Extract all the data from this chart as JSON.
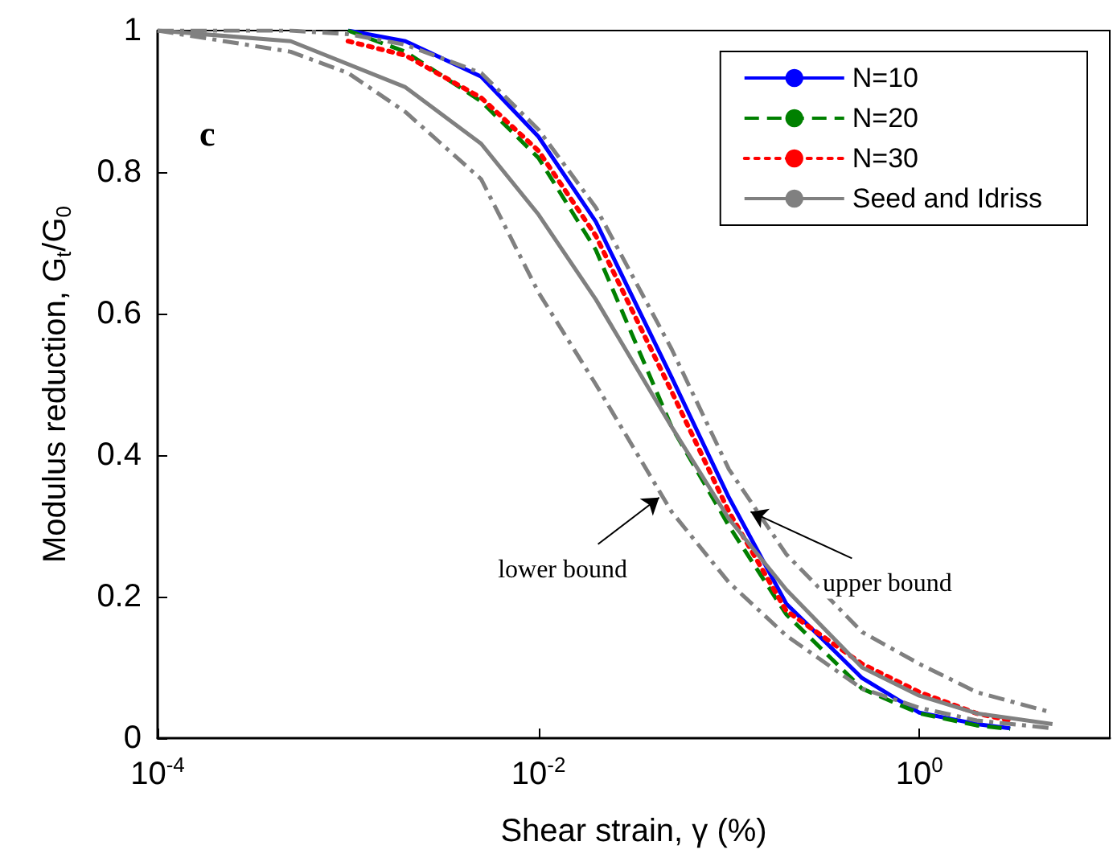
{
  "chart_data": {
    "type": "line",
    "xlabel": "Shear strain, γ (%)",
    "ylabel": "Modulus reduction, G$_{t}$/G$_{0}$",
    "log": "x",
    "grid": false,
    "legend": "top right",
    "marker": "none",
    "xlim": [
      0.0001,
      10
    ],
    "xticks": [
      {
        "value": 0.0001,
        "label": "10$^{-4}$"
      },
      {
        "value": 0.01,
        "label": "10$^{-2}$"
      },
      {
        "value": 1,
        "label": "10$^{0}$"
      }
    ],
    "ylim": [
      0,
      1
    ],
    "yticks": [
      0,
      0.2,
      0.4,
      0.6,
      0.8,
      1
    ],
    "annotations": [
      "c",
      {
        "text": "lower bound",
        "x": 0.043,
        "y": 0.34
      },
      {
        "text": "upper bound",
        "x": 0.13,
        "y": 0.32
      }
    ],
    "series": [
      {
        "name": "N=10",
        "color": "#0000ff",
        "line_style": "solid",
        "x": [
          0.001,
          0.002,
          0.005,
          0.01,
          0.02,
          0.05,
          0.1,
          0.2,
          0.5,
          1,
          2,
          3
        ],
        "values": [
          1.0,
          0.985,
          0.935,
          0.85,
          0.73,
          0.51,
          0.34,
          0.19,
          0.085,
          0.036,
          0.02,
          0.014
        ]
      },
      {
        "name": "N=20",
        "color": "#008000",
        "line_style": "dashed",
        "x": [
          0.001,
          0.002,
          0.005,
          0.01,
          0.02,
          0.05,
          0.1,
          0.2,
          0.5,
          1,
          2,
          3
        ],
        "values": [
          1.0,
          0.97,
          0.9,
          0.82,
          0.69,
          0.44,
          0.3,
          0.175,
          0.07,
          0.035,
          0.018,
          0.013
        ]
      },
      {
        "name": "N=30",
        "color": "#ff0000",
        "line_style": "dotted",
        "x": [
          0.001,
          0.002,
          0.005,
          0.01,
          0.02,
          0.05,
          0.1,
          0.2,
          0.5,
          1,
          2,
          3
        ],
        "values": [
          0.985,
          0.965,
          0.905,
          0.83,
          0.71,
          0.49,
          0.32,
          0.18,
          0.105,
          0.065,
          0.035,
          0.025
        ]
      },
      {
        "name": "Seed and Idriss",
        "color": "#808080",
        "line_style": "solid",
        "x": [
          0.0001,
          0.0005,
          0.002,
          0.005,
          0.01,
          0.02,
          0.05,
          0.1,
          0.2,
          0.5,
          1,
          2,
          5
        ],
        "values": [
          1.0,
          0.985,
          0.92,
          0.84,
          0.74,
          0.62,
          0.44,
          0.31,
          0.21,
          0.1,
          0.06,
          0.035,
          0.02
        ]
      },
      {
        "color": "#808080",
        "line_style": "dashdot",
        "x": [
          0.0001,
          0.0005,
          0.001,
          0.002,
          0.005,
          0.01,
          0.02,
          0.05,
          0.1,
          0.2,
          0.5,
          1,
          2,
          5
        ],
        "values": [
          1.0,
          1.0,
          0.995,
          0.98,
          0.94,
          0.86,
          0.75,
          0.55,
          0.38,
          0.26,
          0.15,
          0.105,
          0.065,
          0.036
        ]
      },
      {
        "color": "#808080",
        "line_style": "dashdot",
        "x": [
          0.0001,
          0.0005,
          0.001,
          0.002,
          0.005,
          0.01,
          0.02,
          0.05,
          0.1,
          0.2,
          0.5,
          1,
          2,
          5
        ],
        "values": [
          1.0,
          0.97,
          0.94,
          0.885,
          0.79,
          0.63,
          0.5,
          0.32,
          0.22,
          0.145,
          0.07,
          0.043,
          0.025,
          0.014
        ]
      }
    ]
  }
}
